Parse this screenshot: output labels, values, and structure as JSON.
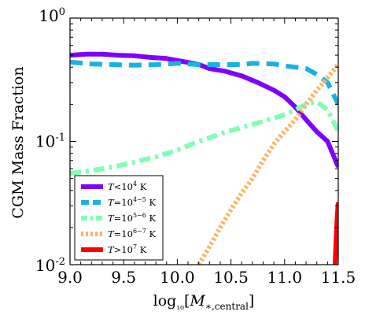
{
  "chart_data": {
    "type": "line",
    "xlabel": "log₁₀[M∗,central]",
    "ylabel": "CGM Mass Fraction",
    "x_scale": "linear",
    "y_scale": "log",
    "xlim": [
      9.0,
      11.5
    ],
    "ylim": [
      0.01,
      1.0
    ],
    "x_ticks": [
      "9.0",
      "9.5",
      "10.0",
      "10.5",
      "11.0",
      "11.5"
    ],
    "x_tick_values": [
      9.0,
      9.5,
      10.0,
      10.5,
      11.0,
      11.5
    ],
    "y_ticks": [
      {
        "value": 1.0,
        "base": "10",
        "exp": "0"
      },
      {
        "value": 0.1,
        "base": "10",
        "exp": "-1"
      },
      {
        "value": 0.01,
        "base": "10",
        "exp": "-2"
      }
    ],
    "grid": false,
    "legend_position": "lower-left",
    "series": [
      {
        "name": "T<10⁴ K",
        "legend": {
          "sym": "T",
          "op": "<",
          "base": "10",
          "exp": "4",
          "unit": "K"
        },
        "color": "#7f00ff",
        "style": "solid",
        "x": [
          9.0,
          9.15,
          9.3,
          9.45,
          9.6,
          9.75,
          9.9,
          10.05,
          10.2,
          10.3,
          10.45,
          10.6,
          10.75,
          10.9,
          11.0,
          11.1,
          11.2,
          11.3,
          11.4,
          11.5
        ],
        "y": [
          0.5,
          0.51,
          0.51,
          0.5,
          0.495,
          0.48,
          0.47,
          0.445,
          0.42,
          0.39,
          0.37,
          0.34,
          0.3,
          0.26,
          0.23,
          0.19,
          0.15,
          0.12,
          0.1,
          0.062
        ]
      },
      {
        "name": "T=10⁴⁻⁵ K",
        "legend": {
          "sym": "T",
          "op": "=",
          "base": "10",
          "exp": "4−5",
          "unit": "K"
        },
        "color": "#18b2e6",
        "style": "dashed",
        "x": [
          9.0,
          9.2,
          9.4,
          9.6,
          9.8,
          10.0,
          10.2,
          10.4,
          10.6,
          10.7,
          10.9,
          11.0,
          11.1,
          11.2,
          11.3,
          11.4,
          11.5
        ],
        "y": [
          0.44,
          0.425,
          0.42,
          0.415,
          0.42,
          0.43,
          0.42,
          0.42,
          0.42,
          0.43,
          0.425,
          0.41,
          0.4,
          0.39,
          0.35,
          0.3,
          0.2
        ]
      },
      {
        "name": "T=10⁵⁻⁶ K",
        "legend": {
          "sym": "T",
          "op": "=",
          "base": "10",
          "exp": "5−6",
          "unit": "K"
        },
        "color": "#80ffb3",
        "style": "dashdot",
        "x": [
          9.0,
          9.2,
          9.4,
          9.6,
          9.8,
          10.0,
          10.2,
          10.4,
          10.6,
          10.8,
          11.0,
          11.1,
          11.2,
          11.3,
          11.4,
          11.5
        ],
        "y": [
          0.055,
          0.058,
          0.062,
          0.068,
          0.075,
          0.085,
          0.1,
          0.115,
          0.13,
          0.145,
          0.165,
          0.18,
          0.2,
          0.21,
          0.18,
          0.12
        ]
      },
      {
        "name": "T=10⁶⁻⁷ K",
        "legend": {
          "sym": "T",
          "op": "=",
          "base": "10",
          "exp": "6−7",
          "unit": "K"
        },
        "color": "#ffb360",
        "style": "dotted",
        "x": [
          10.2,
          10.3,
          10.4,
          10.5,
          10.6,
          10.7,
          10.8,
          10.9,
          11.0,
          11.1,
          11.2,
          11.3,
          11.4,
          11.5
        ],
        "y": [
          0.01,
          0.014,
          0.02,
          0.028,
          0.038,
          0.05,
          0.07,
          0.095,
          0.12,
          0.15,
          0.2,
          0.26,
          0.33,
          0.42
        ]
      },
      {
        "name": "T>10⁷ K",
        "legend": {
          "sym": "T",
          "op": ">",
          "base": "10",
          "exp": "7",
          "unit": "K"
        },
        "color": "#ff0000",
        "style": "solid",
        "x": [
          11.46,
          11.47,
          11.48,
          11.49,
          11.5
        ],
        "y": [
          0.005,
          0.01,
          0.016,
          0.024,
          0.032
        ]
      }
    ]
  }
}
